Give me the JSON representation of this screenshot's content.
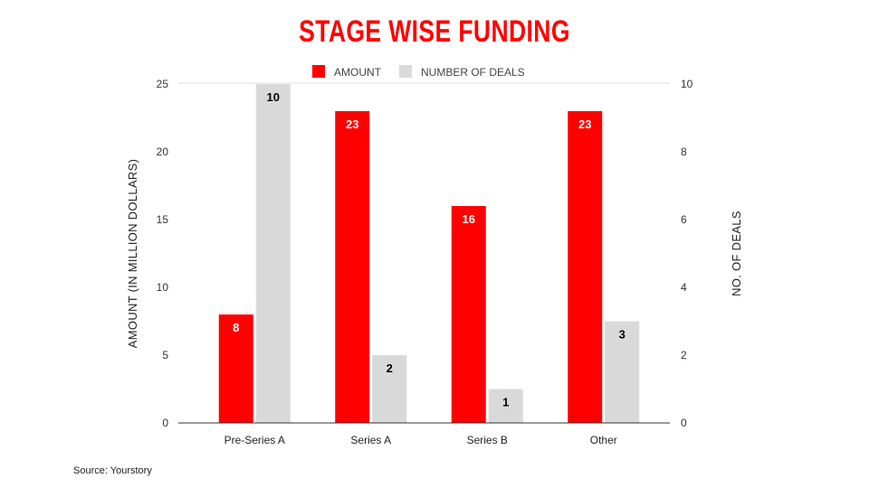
{
  "chart_data": {
    "type": "bar",
    "title": "STAGE WISE FUNDING",
    "categories": [
      "Pre-Series A",
      "Series A",
      "Series B",
      "Other"
    ],
    "series": [
      {
        "name": "AMOUNT",
        "axis": "left",
        "color": "#ff0000",
        "label_color": "#ffffff",
        "values": [
          8,
          23,
          16,
          23
        ]
      },
      {
        "name": "NUMBER OF DEALS",
        "axis": "right",
        "color": "#d9d9d9",
        "label_color": "#000000",
        "values": [
          10,
          2,
          1,
          3
        ]
      }
    ],
    "ylabel": "AMOUNT (IN MILLION DOLLARS)",
    "ylabel_right": "NO. OF DEALS",
    "ylim": [
      0,
      25
    ],
    "yticks": [
      0,
      5,
      10,
      15,
      20,
      25
    ],
    "ylim_right": [
      0,
      10
    ],
    "yticks_right": [
      0,
      2,
      4,
      6,
      8,
      10
    ],
    "grid": false,
    "legend_position": "top",
    "data_labels": true
  },
  "source": "Source: Yourstory"
}
